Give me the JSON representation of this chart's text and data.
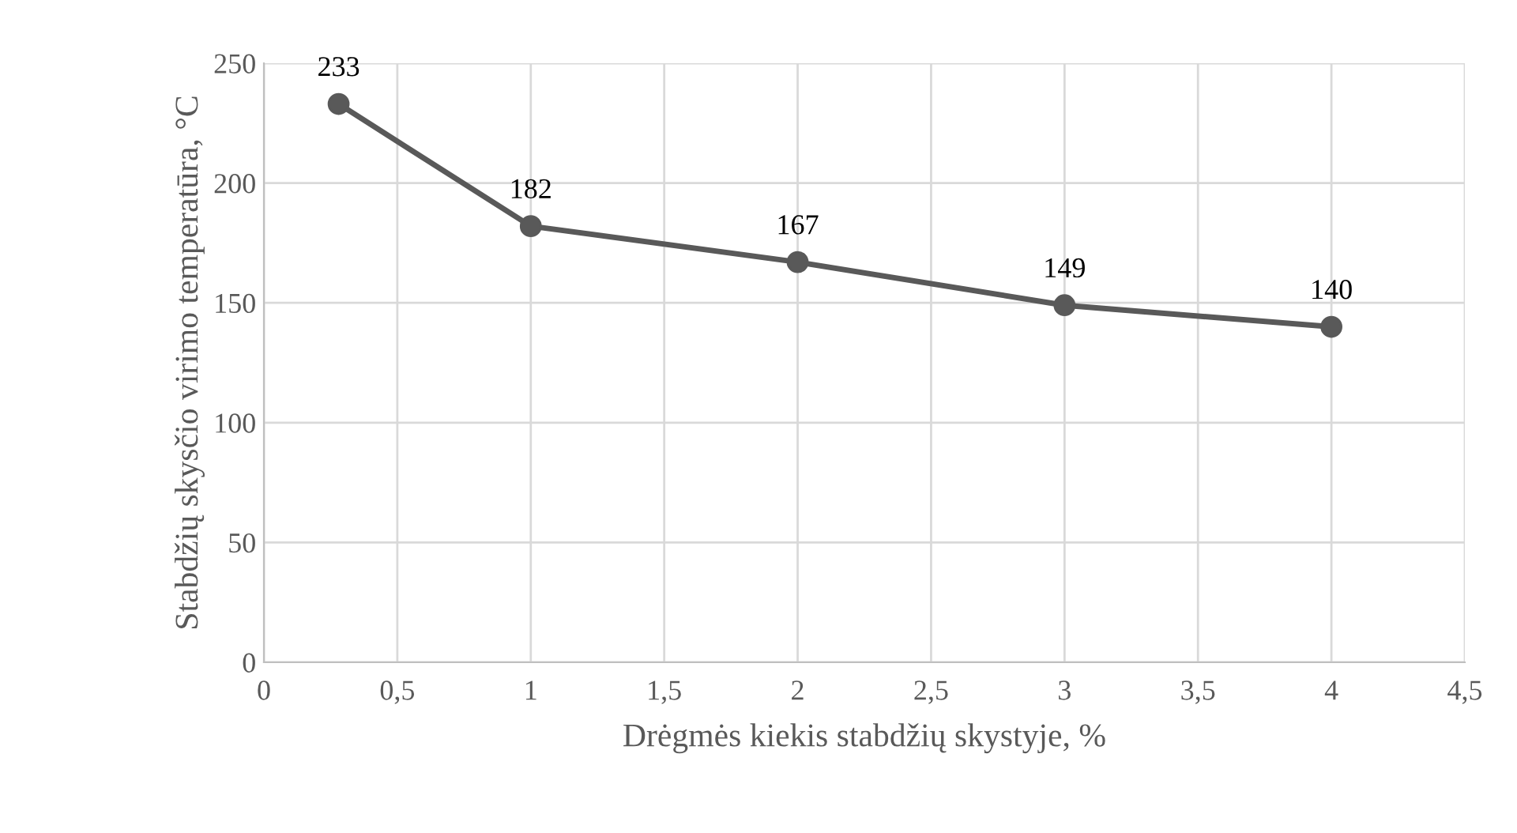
{
  "chart_data": {
    "type": "line",
    "xlabel": "Drėgmės kiekis stabdžių skystyje, %",
    "ylabel": "Stabdžių skysčio virimo temperatūra, °C",
    "x": [
      0.28,
      1,
      2,
      3,
      4
    ],
    "series": [
      {
        "color": "#595959",
        "values": [
          233,
          182,
          167,
          149,
          140
        ]
      }
    ],
    "xlim": [
      0,
      4.5
    ],
    "xticks": [
      0,
      {
        "value": 0.5,
        "label": "0,5"
      },
      1,
      {
        "value": 1.5,
        "label": "1,5"
      },
      2,
      {
        "value": 2.5,
        "label": "2,5"
      },
      3,
      {
        "value": 3.5,
        "label": "3,5"
      },
      4,
      {
        "value": 4.5,
        "label": "4,5"
      }
    ],
    "ylim": [
      0,
      250
    ],
    "yticks": [
      0,
      50,
      100,
      150,
      200,
      250
    ],
    "grid": true,
    "marker": "circle",
    "line_style": "solid",
    "data_labels": true
  }
}
